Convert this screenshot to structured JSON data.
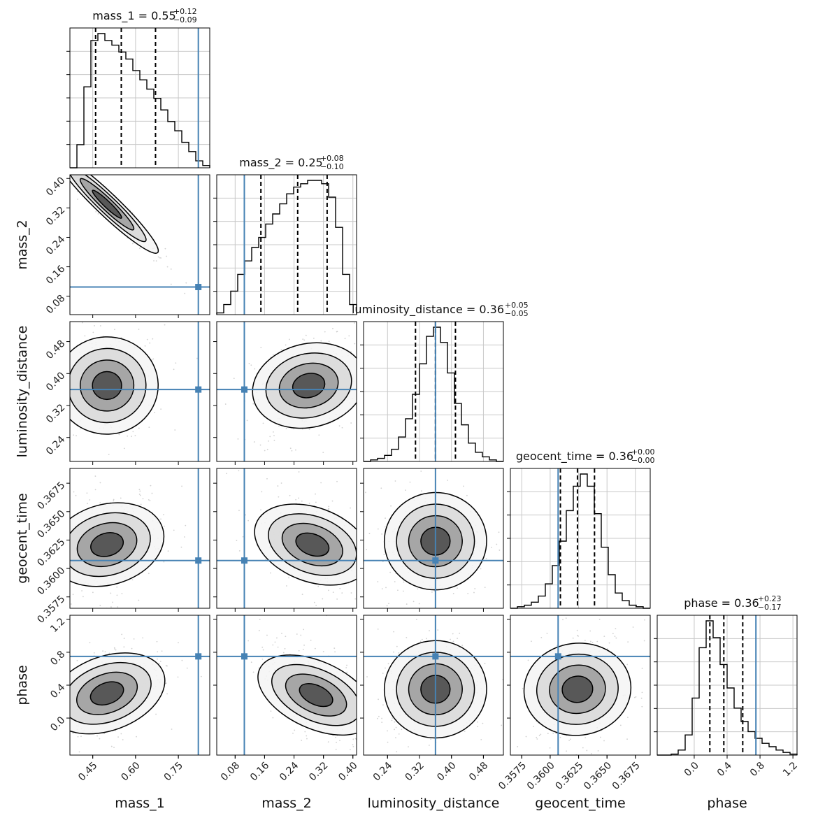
{
  "chart_data": {
    "type": "corner",
    "parameters": [
      "mass_1",
      "mass_2",
      "luminosity_distance",
      "geocent_time",
      "phase"
    ],
    "injection": {
      "mass_1": 0.82,
      "mass_2": 0.105,
      "luminosity_distance": 0.36,
      "geocent_time": 0.3607,
      "phase": 0.75
    },
    "ranges": {
      "mass_1": [
        0.37,
        0.86
      ],
      "mass_2": [
        0.03,
        0.41
      ],
      "luminosity_distance": [
        0.18,
        0.53
      ],
      "geocent_time": [
        0.3565,
        0.3688
      ],
      "phase": [
        -0.45,
        1.25
      ]
    },
    "ticks": {
      "mass_1": {
        "values": [
          0.45,
          0.6,
          0.75
        ],
        "labels": [
          "0.45",
          "0.60",
          "0.75"
        ]
      },
      "mass_2": {
        "values": [
          0.08,
          0.16,
          0.24,
          0.32,
          0.4
        ],
        "labels": [
          "0.08",
          "0.16",
          "0.24",
          "0.32",
          "0.40"
        ]
      },
      "luminosity_distance": {
        "values": [
          0.24,
          0.32,
          0.4,
          0.48
        ],
        "labels": [
          "0.24",
          "0.32",
          "0.40",
          "0.48"
        ]
      },
      "geocent_time": {
        "values": [
          0.3575,
          0.36,
          0.3625,
          0.365,
          0.3675
        ],
        "labels": [
          "0.3575",
          "0.3600",
          "0.3625",
          "0.3650",
          "0.3675"
        ]
      },
      "phase": {
        "values": [
          0.0,
          0.4,
          0.8,
          1.2
        ],
        "labels": [
          "0.0",
          "0.4",
          "0.8",
          "1.2"
        ]
      }
    },
    "titles": [
      {
        "param": "mass_1",
        "text": "mass_1 = 0.55",
        "plus": "+0.12",
        "minus": "−0.09"
      },
      {
        "param": "mass_2",
        "text": "mass_2 = 0.25",
        "plus": "+0.08",
        "minus": "−0.10"
      },
      {
        "param": "luminosity_distance",
        "text": "luminosity_distance = 0.36",
        "plus": "+0.05",
        "minus": "−0.05"
      },
      {
        "param": "geocent_time",
        "text": "geocent_time = 0.36",
        "plus": "+0.00",
        "minus": "−0.00"
      },
      {
        "param": "phase",
        "text": "phase = 0.36",
        "plus": "+0.23",
        "minus": "−0.17"
      }
    ],
    "quantiles": {
      "mass_1": [
        0.46,
        0.55,
        0.67
      ],
      "mass_2": [
        0.15,
        0.25,
        0.33
      ],
      "luminosity_distance": [
        0.31,
        0.36,
        0.41
      ],
      "geocent_time": [
        0.3609,
        0.3624,
        0.3639
      ],
      "phase": [
        0.19,
        0.36,
        0.59
      ]
    },
    "histograms": {
      "mass_1": {
        "range": [
          0.37,
          0.86
        ],
        "counts": [
          0,
          10,
          35,
          55,
          58,
          55,
          53,
          50,
          47,
          42,
          38,
          34,
          30,
          25,
          20,
          16,
          11,
          7,
          3,
          1
        ]
      },
      "mass_2": {
        "range": [
          0.03,
          0.41
        ],
        "counts": [
          0.5,
          3,
          7,
          12,
          16,
          20,
          23,
          27,
          30,
          33,
          36,
          38,
          39,
          40,
          40,
          39,
          35,
          26,
          12,
          3
        ]
      },
      "luminosity_distance": {
        "range": [
          0.18,
          0.53
        ],
        "counts": [
          0,
          0.5,
          1,
          2,
          4,
          8,
          14,
          22,
          32,
          41,
          44,
          39,
          29,
          19,
          12,
          6,
          3,
          1.5,
          0.5,
          0
        ]
      },
      "geocent_time": {
        "range": [
          0.3565,
          0.3688
        ],
        "counts": [
          0,
          0.5,
          1,
          2,
          4,
          8,
          14,
          22,
          32,
          40,
          44,
          40,
          31,
          20,
          11,
          5,
          2.5,
          1,
          0.5,
          0
        ]
      },
      "phase": {
        "range": [
          -0.45,
          1.25
        ],
        "counts": [
          0,
          0,
          0.3,
          1.5,
          6,
          17,
          32,
          40,
          35,
          27,
          20,
          14,
          10,
          7,
          5,
          3.5,
          2.5,
          1.5,
          0.8,
          0.3
        ]
      }
    },
    "joint_centers": {
      "mass_2|mass_1": {
        "center": [
          0.5,
          0.33
        ],
        "corr": -0.97
      },
      "luminosity_distance|mass_1": {
        "center": [
          0.5,
          0.37
        ],
        "corr": 0.05
      },
      "luminosity_distance|mass_2": {
        "center": [
          0.28,
          0.37
        ],
        "corr": 0.3
      },
      "geocent_time|mass_1": {
        "center": [
          0.5,
          0.3621
        ],
        "corr": 0.35
      },
      "geocent_time|mass_2": {
        "center": [
          0.29,
          0.3621
        ],
        "corr": -0.45
      },
      "geocent_time|luminosity_distance": {
        "center": [
          0.36,
          0.3624
        ],
        "corr": 0.05
      },
      "phase|mass_1": {
        "center": [
          0.5,
          0.3
        ],
        "corr": 0.45
      },
      "phase|mass_2": {
        "center": [
          0.3,
          0.28
        ],
        "corr": -0.55
      },
      "phase|luminosity_distance": {
        "center": [
          0.36,
          0.35
        ],
        "corr": 0.05
      },
      "phase|geocent_time": {
        "center": [
          0.3624,
          0.35
        ],
        "corr": 0.15
      }
    },
    "grid": true,
    "colors": {
      "injection": "#4682b4",
      "hist": "#000000",
      "scatter": "#9a9a9a",
      "grid": "#c8c8c8"
    }
  }
}
